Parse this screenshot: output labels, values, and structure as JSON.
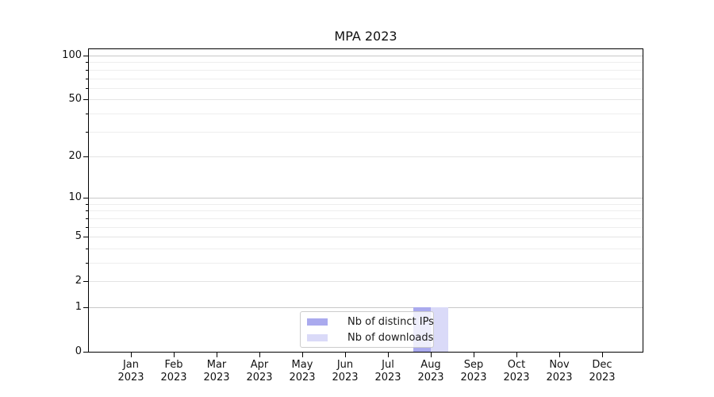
{
  "figure": {
    "title": "MPA 2023"
  },
  "colors": {
    "distinct_ips_bar": "#aaaaee",
    "downloads_bar": "#dadaf8",
    "grid_major": "#c8c8c8",
    "grid_mid": "#e4e4e4",
    "grid_minor": "#eeeeee",
    "axis": "#000000",
    "text": "#111111",
    "legend_border": "#cccccc"
  },
  "chart_data": {
    "type": "bar",
    "title": "MPA 2023",
    "categories": [
      "Jan 2023",
      "Feb 2023",
      "Mar 2023",
      "Apr 2023",
      "May 2023",
      "Jun 2023",
      "Jul 2023",
      "Aug 2023",
      "Sep 2023",
      "Oct 2023",
      "Nov 2023",
      "Dec 2023"
    ],
    "x_tick_line1": [
      "Jan",
      "Feb",
      "Mar",
      "Apr",
      "May",
      "Jun",
      "Jul",
      "Aug",
      "Sep",
      "Oct",
      "Nov",
      "Dec"
    ],
    "x_tick_line2": "2023",
    "series": [
      {
        "name": "Nb of distinct IPs",
        "color": "#aaaaee",
        "values": [
          0,
          0,
          0,
          0,
          0,
          0,
          0,
          1,
          0,
          0,
          0,
          0
        ]
      },
      {
        "name": "Nb of downloads",
        "color": "#dadaf8",
        "values": [
          0,
          0,
          0,
          0,
          0,
          0,
          0,
          1,
          0,
          0,
          0,
          0
        ]
      }
    ],
    "xlabel": "",
    "ylabel": "",
    "y_axis": {
      "scale": "log(1+y)",
      "major_tick_labels": [
        "0",
        "1",
        "2",
        "5",
        "10",
        "20",
        "50",
        "100"
      ],
      "major_ticks": [
        0,
        1,
        2,
        5,
        10,
        20,
        50,
        100
      ],
      "minor_ticks": [
        3,
        4,
        6,
        7,
        8,
        9,
        30,
        40,
        60,
        70,
        80,
        90
      ],
      "ylim": [
        0,
        112
      ]
    },
    "grid": true,
    "legend_position": "lower center"
  }
}
